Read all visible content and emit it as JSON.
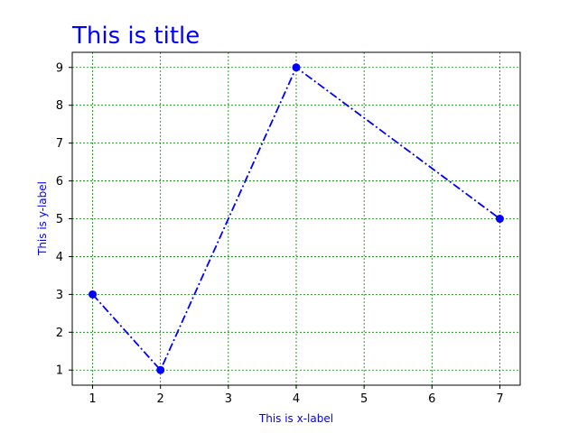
{
  "chart_data": {
    "type": "line",
    "title": "This is title",
    "xlabel": "This is x-label",
    "ylabel": "This is y-label",
    "x": [
      1,
      2,
      4,
      7
    ],
    "series": [
      {
        "values": [
          3,
          1,
          9,
          5
        ]
      }
    ],
    "xticks": [
      "1",
      "2",
      "3",
      "4",
      "5",
      "6",
      "7"
    ],
    "yticks": [
      "1",
      "2",
      "3",
      "4",
      "5",
      "6",
      "7",
      "8",
      "9"
    ],
    "xlim": [
      0.7,
      7.3
    ],
    "ylim": [
      0.6,
      9.4
    ],
    "grid": true,
    "colors": {
      "line": "#0000ff",
      "marker": "#0000ff",
      "grid": "#008000",
      "title": "#0000ff",
      "labels": "#0000ff",
      "axis": "#000000"
    },
    "line_style": "dash-dot",
    "marker": "circle"
  }
}
